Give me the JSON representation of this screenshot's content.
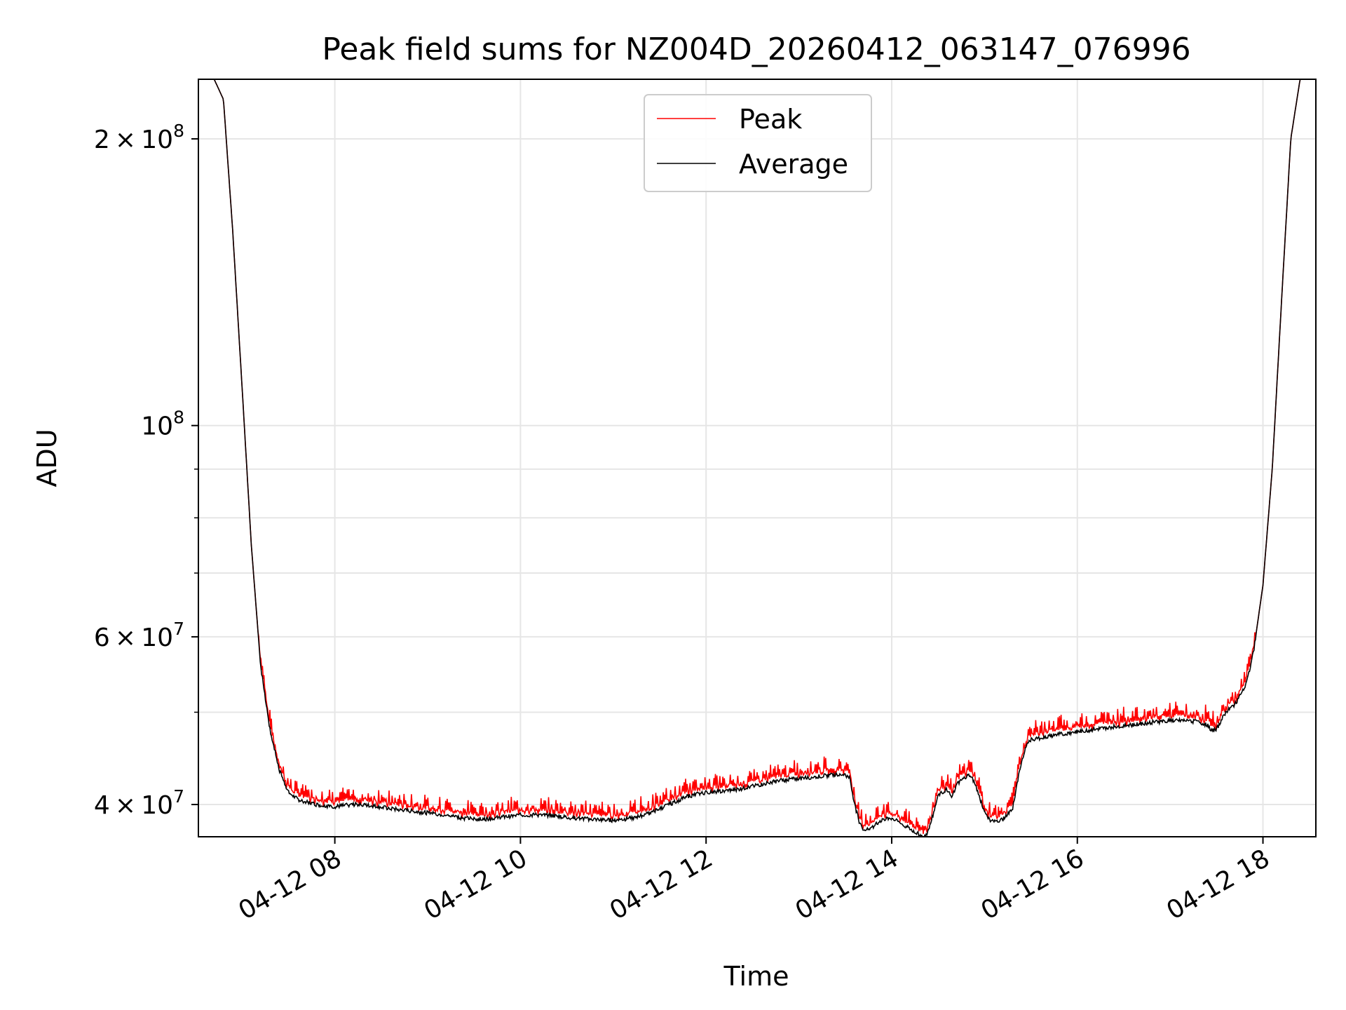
{
  "chart_data": {
    "type": "line",
    "title": "Peak field sums for NZ004D_20260412_063147_076996",
    "xlabel": "Time",
    "ylabel": "ADU",
    "yscale": "log",
    "xlim": [
      6.53,
      18.57
    ],
    "ylim": [
      37000000,
      231000000
    ],
    "x_unit": "hours on 2026-04-12",
    "x_ticks": [
      {
        "value": 8,
        "label": "04-12 08"
      },
      {
        "value": 10,
        "label": "04-12 10"
      },
      {
        "value": 12,
        "label": "04-12 12"
      },
      {
        "value": 14,
        "label": "04-12 14"
      },
      {
        "value": 16,
        "label": "04-12 16"
      },
      {
        "value": 18,
        "label": "04-12 18"
      }
    ],
    "y_ticks": [
      {
        "value": 40000000,
        "mantissa": "4",
        "exponent": "7",
        "times": "×",
        "base": "10"
      },
      {
        "value": 60000000,
        "mantissa": "6",
        "exponent": "7",
        "times": "×",
        "base": "10"
      },
      {
        "value": 100000000,
        "mantissa": "",
        "exponent": "8",
        "times": "",
        "base": "10"
      },
      {
        "value": 200000000,
        "mantissa": "2",
        "exponent": "8",
        "times": "×",
        "base": "10"
      }
    ],
    "y_minor_ticks": [
      50000000,
      70000000,
      80000000,
      90000000
    ],
    "grid": true,
    "legend": {
      "position": "top-center",
      "entries": [
        {
          "label": "Peak",
          "color": "#ff0000"
        },
        {
          "label": "Average",
          "color": "#000000"
        }
      ]
    },
    "series": [
      {
        "name": "Average",
        "color": "#000000",
        "x": [
          6.53,
          6.7,
          6.8,
          6.9,
          7.0,
          7.1,
          7.2,
          7.3,
          7.4,
          7.5,
          7.6,
          7.8,
          8.0,
          8.2,
          8.4,
          8.6,
          8.8,
          9.0,
          9.2,
          9.4,
          9.6,
          9.8,
          10.0,
          10.2,
          10.4,
          10.6,
          10.8,
          11.0,
          11.2,
          11.4,
          11.6,
          11.8,
          12.0,
          12.2,
          12.4,
          12.6,
          12.8,
          13.0,
          13.2,
          13.4,
          13.5,
          13.55,
          13.6,
          13.65,
          13.7,
          13.8,
          13.9,
          14.0,
          14.1,
          14.2,
          14.3,
          14.35,
          14.4,
          14.45,
          14.5,
          14.6,
          14.65,
          14.7,
          14.8,
          14.85,
          14.9,
          14.95,
          15.0,
          15.05,
          15.1,
          15.2,
          15.3,
          15.35,
          15.4,
          15.45,
          15.5,
          15.6,
          15.8,
          16.0,
          16.2,
          16.4,
          16.6,
          16.8,
          17.0,
          17.2,
          17.3,
          17.4,
          17.45,
          17.5,
          17.55,
          17.6,
          17.7,
          17.8,
          17.85,
          17.9,
          18.0,
          18.1,
          18.2,
          18.3,
          18.4,
          18.57
        ],
        "y": [
          231000000,
          231000000,
          220000000,
          160000000,
          110000000,
          75000000,
          56000000,
          48000000,
          43500000,
          41200000,
          40500000,
          40000000,
          39800000,
          40000000,
          39900000,
          39600000,
          39400000,
          39200000,
          39000000,
          38700000,
          38600000,
          38800000,
          39000000,
          39000000,
          38900000,
          38700000,
          38600000,
          38500000,
          38700000,
          39200000,
          40000000,
          40800000,
          41200000,
          41300000,
          41600000,
          42000000,
          42400000,
          42600000,
          42800000,
          43000000,
          43000000,
          42600000,
          40000000,
          38400000,
          37600000,
          37900000,
          38600000,
          38700000,
          38200000,
          37700000,
          37200000,
          36900000,
          37600000,
          39200000,
          41000000,
          41500000,
          40600000,
          42000000,
          42800000,
          43000000,
          42000000,
          40600000,
          39300000,
          38600000,
          38400000,
          38600000,
          39500000,
          42000000,
          44500000,
          46000000,
          46800000,
          47000000,
          47400000,
          47700000,
          48000000,
          48300000,
          48500000,
          48800000,
          49000000,
          49000000,
          48800000,
          48500000,
          47800000,
          48000000,
          49000000,
          50000000,
          51000000,
          53000000,
          55000000,
          58000000,
          68000000,
          90000000,
          135000000,
          200000000,
          231000000,
          231000000
        ]
      },
      {
        "name": "Peak",
        "color": "#ff0000",
        "ratio": 1.012,
        "spike_ratio": 1.045
      }
    ]
  }
}
